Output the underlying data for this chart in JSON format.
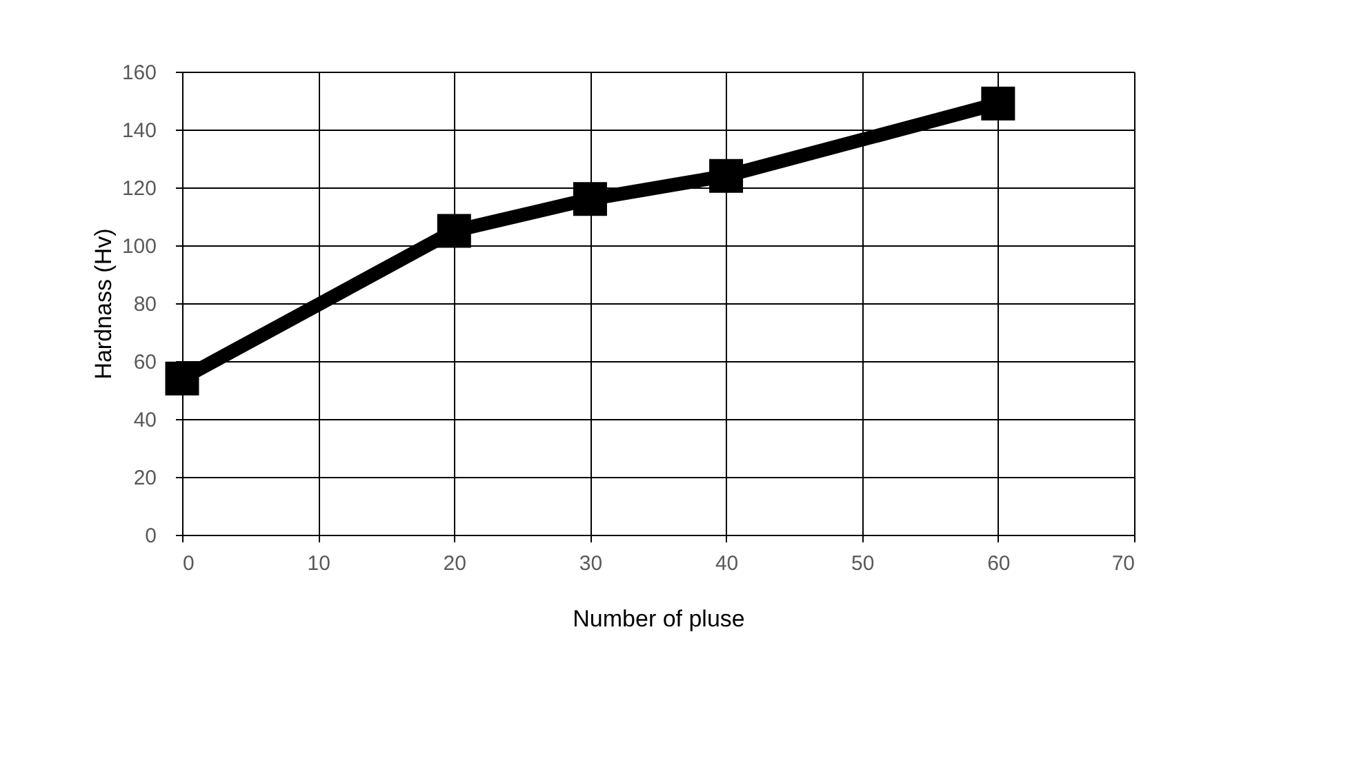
{
  "chart_data": {
    "type": "line",
    "xlabel": "Number of pluse",
    "ylabel": "Hardnass (Hv)",
    "x": [
      0,
      20,
      30,
      40,
      60
    ],
    "series": [
      {
        "color": "#000000",
        "values": [
          54,
          105,
          116,
          124,
          149
        ]
      }
    ],
    "xlim": [
      0,
      70
    ],
    "xticks": [
      0,
      10,
      20,
      30,
      40,
      50,
      60,
      70
    ],
    "ylim": [
      0,
      160
    ],
    "yticks": [
      0,
      20,
      40,
      60,
      80,
      100,
      120,
      140,
      160
    ],
    "grid": true,
    "marker": "square",
    "line_style": "solid"
  }
}
